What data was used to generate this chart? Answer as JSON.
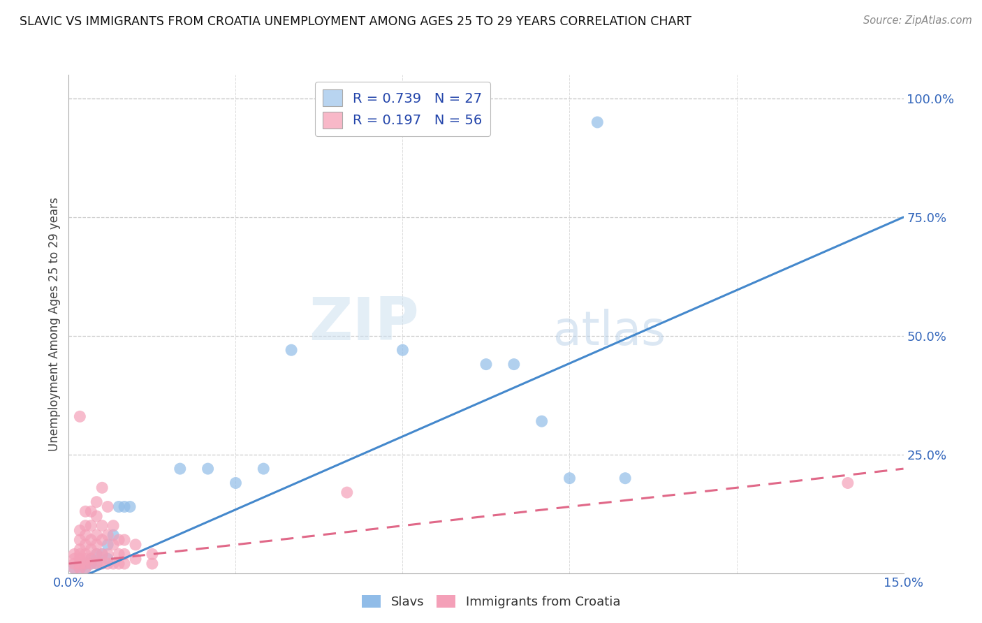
{
  "title": "SLAVIC VS IMMIGRANTS FROM CROATIA UNEMPLOYMENT AMONG AGES 25 TO 29 YEARS CORRELATION CHART",
  "source": "Source: ZipAtlas.com",
  "ylabel": "Unemployment Among Ages 25 to 29 years",
  "xlim": [
    0.0,
    0.15
  ],
  "ylim": [
    0.0,
    1.05
  ],
  "x_ticks": [
    0.0,
    0.03,
    0.06,
    0.09,
    0.12,
    0.15
  ],
  "x_tick_labels": [
    "0.0%",
    "",
    "",
    "",
    "",
    "15.0%"
  ],
  "y_ticks": [
    0.0,
    0.25,
    0.5,
    0.75,
    1.0
  ],
  "y_tick_labels": [
    "",
    "25.0%",
    "50.0%",
    "75.0%",
    "100.0%"
  ],
  "legend_entries": [
    {
      "color": "#b8d4f0",
      "R": "0.739",
      "N": "27"
    },
    {
      "color": "#f8b8c8",
      "R": "0.197",
      "N": "56"
    }
  ],
  "slavs_color": "#90bce8",
  "croatia_color": "#f4a0b8",
  "slavs_line_color": "#4488cc",
  "croatia_line_color": "#e06888",
  "watermark_zip": "ZIP",
  "watermark_atlas": "atlas",
  "slavs_line": [
    [
      0.0,
      -0.02
    ],
    [
      0.15,
      0.75
    ]
  ],
  "croatia_line": [
    [
      0.0,
      0.02
    ],
    [
      0.15,
      0.22
    ]
  ],
  "slavs_points": [
    [
      0.001,
      0.01
    ],
    [
      0.002,
      0.01
    ],
    [
      0.003,
      0.01
    ],
    [
      0.003,
      0.02
    ],
    [
      0.004,
      0.02
    ],
    [
      0.004,
      0.03
    ],
    [
      0.005,
      0.02
    ],
    [
      0.005,
      0.04
    ],
    [
      0.006,
      0.04
    ],
    [
      0.007,
      0.03
    ],
    [
      0.007,
      0.06
    ],
    [
      0.008,
      0.08
    ],
    [
      0.009,
      0.14
    ],
    [
      0.01,
      0.14
    ],
    [
      0.011,
      0.14
    ],
    [
      0.02,
      0.22
    ],
    [
      0.025,
      0.22
    ],
    [
      0.03,
      0.19
    ],
    [
      0.035,
      0.22
    ],
    [
      0.04,
      0.47
    ],
    [
      0.06,
      0.47
    ],
    [
      0.075,
      0.44
    ],
    [
      0.08,
      0.44
    ],
    [
      0.085,
      0.32
    ],
    [
      0.09,
      0.2
    ],
    [
      0.095,
      0.95
    ],
    [
      0.1,
      0.2
    ]
  ],
  "croatia_points": [
    [
      0.001,
      0.01
    ],
    [
      0.001,
      0.02
    ],
    [
      0.001,
      0.03
    ],
    [
      0.001,
      0.04
    ],
    [
      0.002,
      0.01
    ],
    [
      0.002,
      0.02
    ],
    [
      0.002,
      0.03
    ],
    [
      0.002,
      0.04
    ],
    [
      0.002,
      0.05
    ],
    [
      0.002,
      0.07
    ],
    [
      0.002,
      0.09
    ],
    [
      0.002,
      0.33
    ],
    [
      0.003,
      0.01
    ],
    [
      0.003,
      0.02
    ],
    [
      0.003,
      0.03
    ],
    [
      0.003,
      0.04
    ],
    [
      0.003,
      0.06
    ],
    [
      0.003,
      0.08
    ],
    [
      0.003,
      0.1
    ],
    [
      0.003,
      0.13
    ],
    [
      0.004,
      0.02
    ],
    [
      0.004,
      0.03
    ],
    [
      0.004,
      0.05
    ],
    [
      0.004,
      0.07
    ],
    [
      0.004,
      0.1
    ],
    [
      0.004,
      0.13
    ],
    [
      0.005,
      0.02
    ],
    [
      0.005,
      0.04
    ],
    [
      0.005,
      0.06
    ],
    [
      0.005,
      0.08
    ],
    [
      0.005,
      0.12
    ],
    [
      0.005,
      0.15
    ],
    [
      0.006,
      0.02
    ],
    [
      0.006,
      0.04
    ],
    [
      0.006,
      0.07
    ],
    [
      0.006,
      0.1
    ],
    [
      0.006,
      0.18
    ],
    [
      0.007,
      0.02
    ],
    [
      0.007,
      0.04
    ],
    [
      0.007,
      0.08
    ],
    [
      0.007,
      0.14
    ],
    [
      0.008,
      0.02
    ],
    [
      0.008,
      0.06
    ],
    [
      0.008,
      0.1
    ],
    [
      0.009,
      0.02
    ],
    [
      0.009,
      0.04
    ],
    [
      0.009,
      0.07
    ],
    [
      0.01,
      0.02
    ],
    [
      0.01,
      0.04
    ],
    [
      0.01,
      0.07
    ],
    [
      0.012,
      0.03
    ],
    [
      0.012,
      0.06
    ],
    [
      0.015,
      0.02
    ],
    [
      0.015,
      0.04
    ],
    [
      0.05,
      0.17
    ],
    [
      0.14,
      0.19
    ]
  ]
}
